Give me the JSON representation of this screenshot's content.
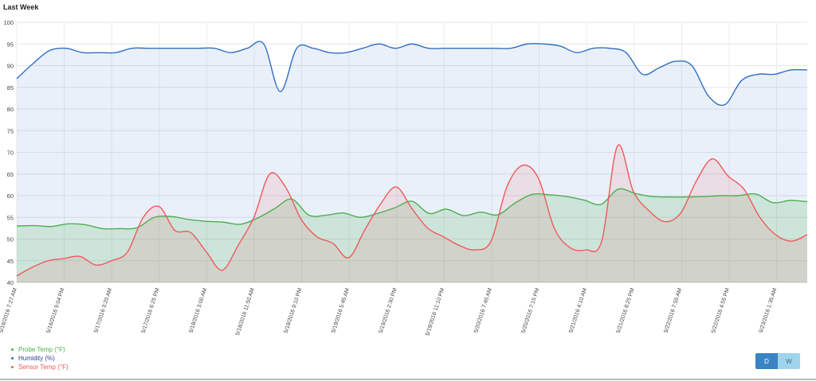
{
  "title": "Last Week",
  "buttons": {
    "day": "D",
    "week": "W"
  },
  "colors": {
    "probe": "#4caf50",
    "humidity": "#2f6fc4",
    "sensor": "#f0585a",
    "btn_active": "#3a84c2",
    "btn_inactive": "#9ed5ec"
  },
  "chart_data": {
    "type": "area",
    "ylim": [
      40,
      100
    ],
    "yticks": [
      40,
      45,
      50,
      55,
      60,
      65,
      70,
      75,
      80,
      85,
      90,
      95,
      100
    ],
    "xticks": [
      "5/16/2016 7:27 AM",
      "5/16/2016 5:04 PM",
      "5/17/2016 3:20 AM",
      "5/17/2016 6:25 PM",
      "5/18/2016 3:00 AM",
      "5/18/2016 11:50 AM",
      "5/18/2016 9:10 PM",
      "5/19/2016 5:45 AM",
      "5/19/2016 2:30 PM",
      "5/19/2016 11:10 PM",
      "5/20/2016 7:45 AM",
      "5/20/2016 7:15 PM",
      "5/21/2016 4:10 AM",
      "5/21/2016 8:25 PM",
      "5/22/2016 7:55 AM",
      "5/22/2016 4:55 PM",
      "5/23/2016 1:35 AM"
    ],
    "grid": true,
    "legend_position": "bottom-left",
    "series": [
      {
        "name": "Probe Temp (°F)",
        "key": "probe",
        "values": [
          53.0,
          53.1,
          52.9,
          53.5,
          53.3,
          52.4,
          52.4,
          52.6,
          55.0,
          55.2,
          54.5,
          54.1,
          53.9,
          53.4,
          54.8,
          57.0,
          59.2,
          55.5,
          55.5,
          56.0,
          55.0,
          55.9,
          57.2,
          58.7,
          55.9,
          56.9,
          55.4,
          56.2,
          55.6,
          58.3,
          60.3,
          60.2,
          59.8,
          59.0,
          58.0,
          61.5,
          60.5,
          59.8,
          59.7,
          59.7,
          59.8,
          60.0,
          60.0,
          60.4,
          58.4,
          58.9,
          58.6
        ]
      },
      {
        "name": "Humidity (%)",
        "key": "humidity",
        "values": [
          87.0,
          90.5,
          93.5,
          94.0,
          93.0,
          93.0,
          93.0,
          94.0,
          94.0,
          94.0,
          94.0,
          94.0,
          94.0,
          93.0,
          94.0,
          95.0,
          84.0,
          94.0,
          94.0,
          93.0,
          93.0,
          94.0,
          95.0,
          94.0,
          95.0,
          94.0,
          94.0,
          94.0,
          94.0,
          94.0,
          94.0,
          95.0,
          95.0,
          94.5,
          93.0,
          94.0,
          94.0,
          93.0,
          88.0,
          89.5,
          91.0,
          90.0,
          83.0,
          81.0,
          86.5,
          88.0,
          88.0,
          89.0,
          89.0
        ]
      },
      {
        "name": "Sensor Temp (°F)",
        "key": "sensor",
        "values": [
          41.5,
          43.5,
          45.0,
          45.5,
          46.0,
          44.0,
          45.0,
          47.0,
          55.0,
          57.5,
          52.0,
          51.5,
          47.0,
          42.8,
          48.5,
          55.0,
          65.0,
          62.0,
          54.5,
          50.5,
          49.0,
          45.7,
          52.0,
          58.0,
          62.0,
          57.0,
          52.5,
          50.5,
          48.5,
          47.5,
          49.5,
          62.0,
          67.0,
          64.0,
          52.5,
          48.0,
          47.5,
          49.5,
          71.5,
          61.0,
          56.5,
          54.0,
          56.0,
          63.5,
          68.5,
          64.5,
          61.5,
          55.0,
          51.0,
          49.5,
          51.0
        ]
      }
    ]
  }
}
